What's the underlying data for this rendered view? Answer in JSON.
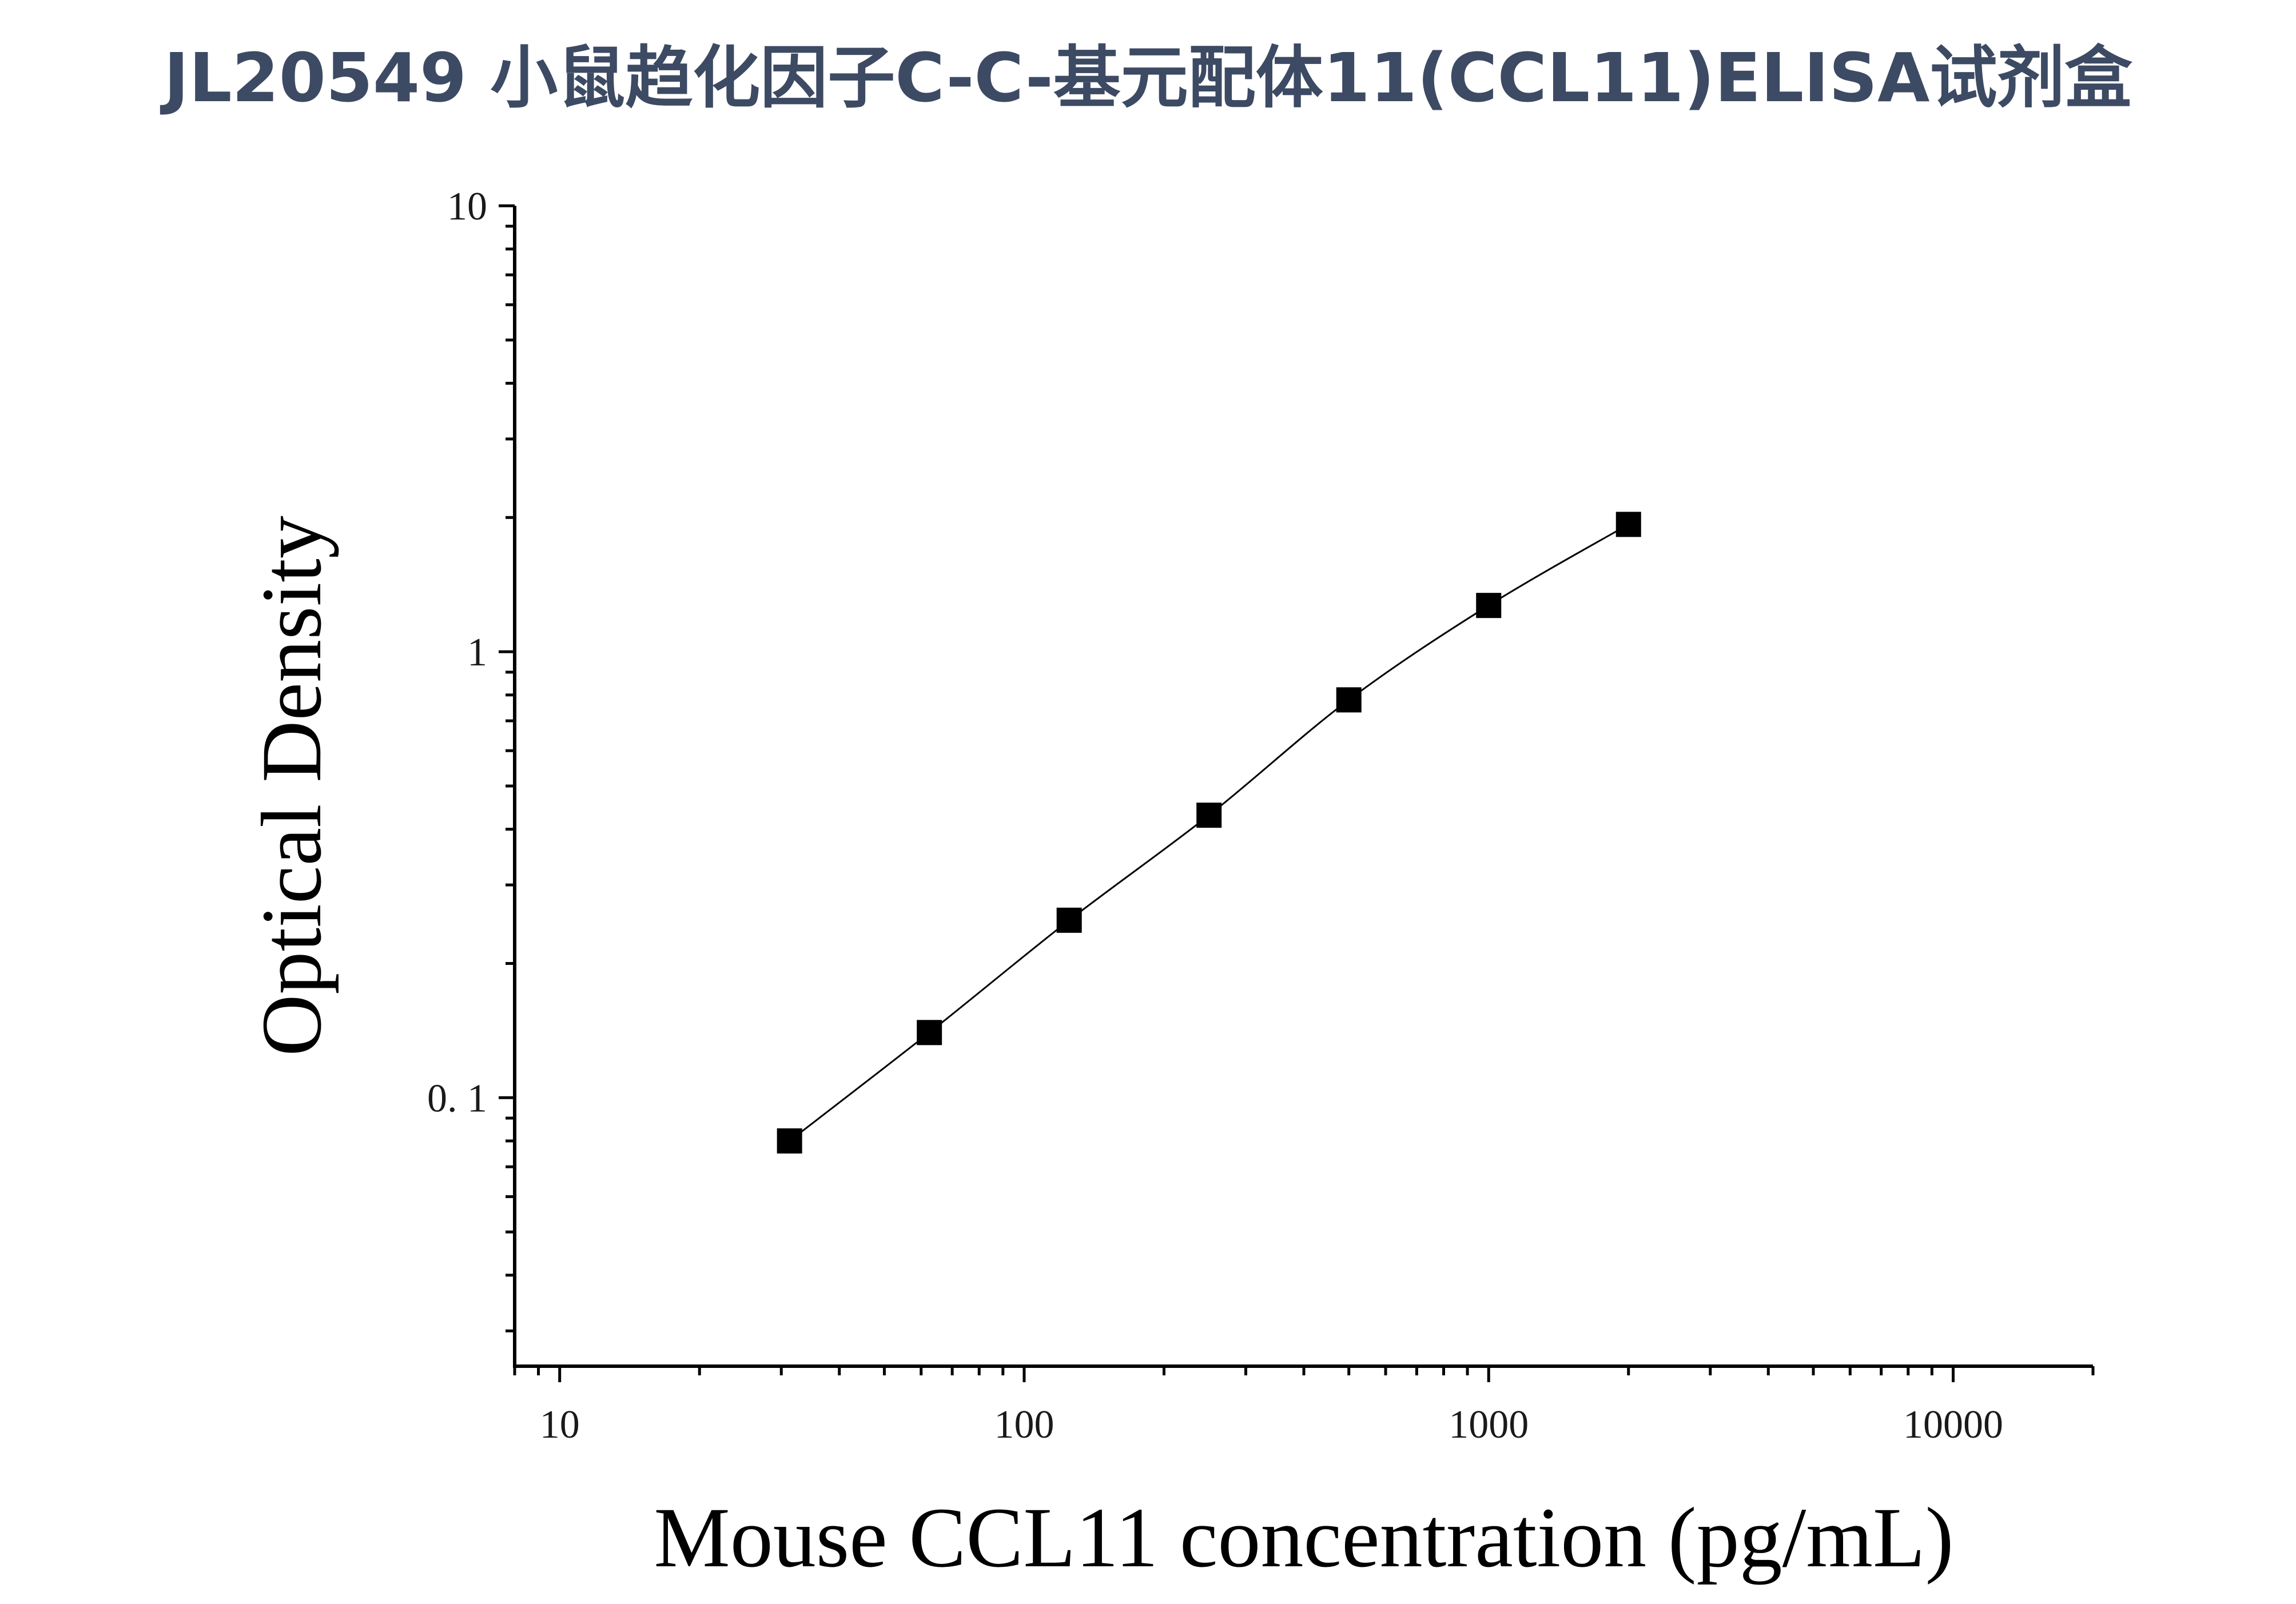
{
  "title": "JL20549 小鼠趋化因子C-C-基元配体11(CCL11)ELISA试剂盒",
  "chart_data": {
    "type": "scatter",
    "title": "JL20549 小鼠趋化因子C-C-基元配体11(CCL11)ELISA试剂盒",
    "xlabel": "Mouse CCL11 concentration (pg/mL)",
    "ylabel": "Optical Density",
    "xscale": "log",
    "yscale": "log",
    "xlim": [
      8,
      20000
    ],
    "ylim": [
      0.025,
      10
    ],
    "xticks": [
      10,
      100,
      1000,
      10000
    ],
    "xtick_labels": [
      "10",
      "100",
      "1000",
      "10000"
    ],
    "yticks": [
      0.1,
      1,
      10
    ],
    "ytick_labels": [
      "0. 1",
      "1",
      "10"
    ],
    "grid": false,
    "legend": "none",
    "fit_line": true,
    "marker": "square",
    "color": "#000000",
    "series": [
      {
        "x": [
          31.25,
          62.5,
          125,
          250,
          500,
          1000,
          2000
        ],
        "y": [
          0.08,
          0.14,
          0.25,
          0.43,
          0.78,
          1.27,
          1.93
        ]
      }
    ]
  }
}
